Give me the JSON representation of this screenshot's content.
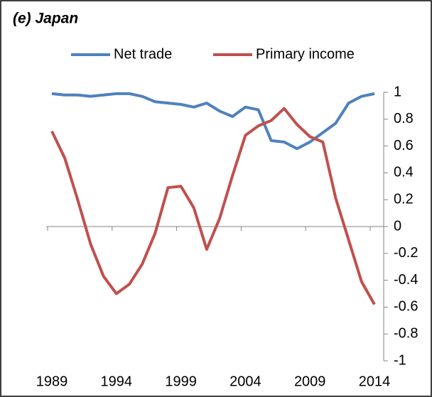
{
  "chart_data": {
    "type": "line",
    "title": "(e) Japan",
    "x": [
      1989,
      1990,
      1991,
      1992,
      1993,
      1994,
      1995,
      1996,
      1997,
      1998,
      1999,
      2000,
      2001,
      2002,
      2003,
      2004,
      2005,
      2006,
      2007,
      2008,
      2009,
      2010,
      2011,
      2012,
      2013,
      2014
    ],
    "series": [
      {
        "name": "Net trade",
        "color": "#4f81bd",
        "values": [
          0.99,
          0.98,
          0.98,
          0.97,
          0.98,
          0.99,
          0.99,
          0.97,
          0.93,
          0.92,
          0.91,
          0.89,
          0.92,
          0.86,
          0.82,
          0.89,
          0.87,
          0.64,
          0.63,
          0.58,
          0.63,
          0.7,
          0.77,
          0.92,
          0.97,
          0.99
        ]
      },
      {
        "name": "Primary income",
        "color": "#c0504d",
        "values": [
          0.71,
          0.51,
          0.2,
          -0.13,
          -0.37,
          -0.5,
          -0.43,
          -0.28,
          -0.05,
          0.29,
          0.3,
          0.14,
          -0.17,
          0.06,
          0.38,
          0.68,
          0.75,
          0.79,
          0.88,
          0.76,
          0.67,
          0.63,
          0.21,
          -0.1,
          -0.41,
          -0.58
        ]
      }
    ],
    "xlim": [
      1989,
      2014
    ],
    "xticks": [
      1989,
      1994,
      1999,
      2004,
      2009,
      2014
    ],
    "ylim": [
      -1,
      1
    ],
    "yticks": [
      1,
      0.8,
      0.6,
      0.4,
      0.2,
      0,
      -0.2,
      -0.4,
      -0.6,
      -0.8,
      -1
    ],
    "legend": "top"
  }
}
